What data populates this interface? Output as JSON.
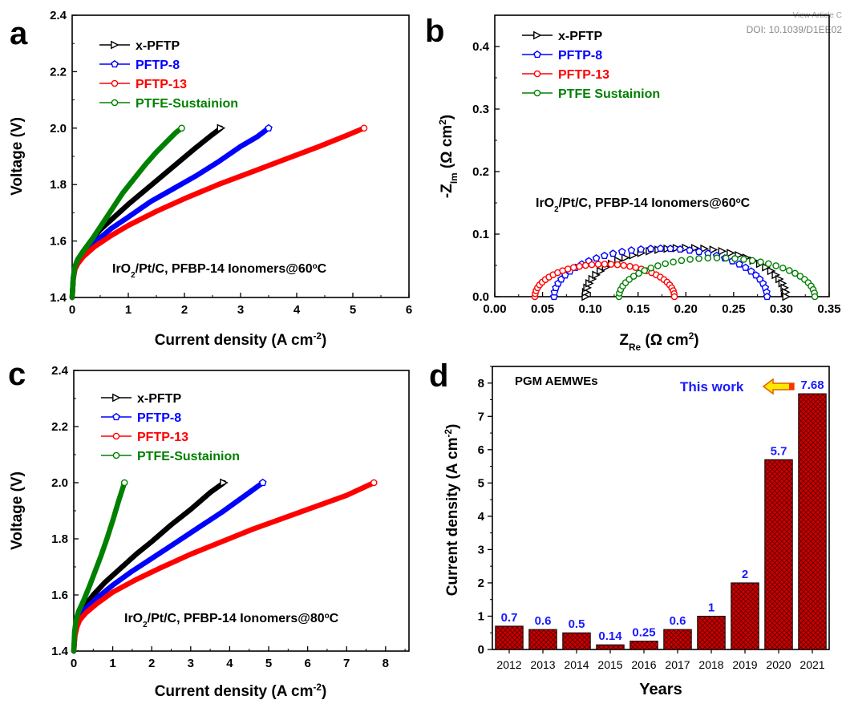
{
  "header": {
    "view_article": "View Article C",
    "doi": "DOI: 10.1039/D1EE02"
  },
  "chart_data": [
    {
      "panel": "a",
      "type": "line",
      "annotation": "IrO2/Pt/C, PFBP-14 Ionomers@60°C",
      "annotation_parts": [
        "IrO",
        "2",
        "/Pt/C, PFBP-14 Ionomers@60",
        "o",
        "C"
      ],
      "xlabel": "Current density (A cm-2)",
      "xlabel_parts": [
        "Current density (A cm",
        "-2",
        ")"
      ],
      "ylabel": "Voltage (V)",
      "xlim": [
        0,
        6
      ],
      "ylim": [
        1.4,
        2.4
      ],
      "xticks": [
        "0",
        "1",
        "2",
        "3",
        "4",
        "5",
        "6"
      ],
      "yticks": [
        "1.4",
        "1.6",
        "1.8",
        "2.0",
        "2.2",
        "2.4"
      ],
      "legend_position": "top-left",
      "series": [
        {
          "name": "x-PFTP",
          "color": "#000000",
          "marker": "triangle",
          "x": [
            0,
            0.02,
            0.05,
            0.1,
            0.2,
            0.35,
            0.5,
            0.75,
            1.0,
            1.3,
            1.6,
            1.9,
            2.2,
            2.45,
            2.65
          ],
          "y": [
            1.4,
            1.47,
            1.51,
            1.535,
            1.565,
            1.605,
            1.64,
            1.685,
            1.73,
            1.78,
            1.83,
            1.88,
            1.93,
            1.97,
            2.0
          ]
        },
        {
          "name": "PFTP-8",
          "color": "#0000ff",
          "marker": "pentagon",
          "x": [
            0,
            0.02,
            0.05,
            0.1,
            0.2,
            0.4,
            0.7,
            1.0,
            1.4,
            1.8,
            2.2,
            2.6,
            3.0,
            3.3,
            3.5
          ],
          "y": [
            1.4,
            1.47,
            1.505,
            1.53,
            1.555,
            1.595,
            1.645,
            1.685,
            1.74,
            1.785,
            1.83,
            1.88,
            1.935,
            1.97,
            2.0
          ]
        },
        {
          "name": "PFTP-13",
          "color": "#ff0000",
          "marker": "circle",
          "x": [
            0,
            0.02,
            0.05,
            0.1,
            0.2,
            0.4,
            0.7,
            1.0,
            1.5,
            2.0,
            2.6,
            3.2,
            3.8,
            4.4,
            4.9,
            5.2
          ],
          "y": [
            1.4,
            1.465,
            1.5,
            1.52,
            1.545,
            1.58,
            1.62,
            1.655,
            1.705,
            1.75,
            1.8,
            1.845,
            1.89,
            1.935,
            1.975,
            2.0
          ]
        },
        {
          "name": "PTFE-Sustainion",
          "color": "#008000",
          "marker": "circle",
          "x": [
            0,
            0.02,
            0.05,
            0.1,
            0.2,
            0.35,
            0.5,
            0.7,
            0.9,
            1.1,
            1.3,
            1.5,
            1.7,
            1.85,
            1.95
          ],
          "y": [
            1.4,
            1.47,
            1.51,
            1.535,
            1.565,
            1.605,
            1.65,
            1.71,
            1.77,
            1.82,
            1.87,
            1.915,
            1.955,
            1.985,
            2.0
          ]
        }
      ]
    },
    {
      "panel": "b",
      "type": "scatter",
      "annotation": "IrO2/Pt/C, PFBP-14 Ionomers@60°C",
      "annotation_parts": [
        "IrO",
        "2",
        "/Pt/C, PFBP-14 Ionomers@60",
        "o",
        "C"
      ],
      "xlabel": "ZRe (Ω cm2)",
      "xlabel_parts": [
        "Z",
        "Re",
        " (Ω cm",
        "2",
        ")"
      ],
      "ylabel": "-ZIm (Ω cm2)",
      "ylabel_parts": [
        "-Z",
        "Im",
        " (Ω cm",
        "2",
        ")"
      ],
      "xlim": [
        0,
        0.35
      ],
      "ylim": [
        0,
        0.45
      ],
      "xticks": [
        "0.00",
        "0.05",
        "0.10",
        "0.15",
        "0.20",
        "0.25",
        "0.30",
        "0.35"
      ],
      "yticks": [
        "0.0",
        "0.1",
        "0.2",
        "0.3",
        "0.4"
      ],
      "legend_position": "top-left",
      "series": [
        {
          "name": "x-PFTP",
          "color": "#000000",
          "marker": "triangle",
          "arc": {
            "r0": 0.095,
            "r1": 0.305,
            "peak": 0.078
          }
        },
        {
          "name": "PFTP-8",
          "color": "#0000ff",
          "marker": "pentagon",
          "arc": {
            "r0": 0.062,
            "r1": 0.285,
            "peak": 0.077
          }
        },
        {
          "name": "PFTP-13",
          "color": "#ff0000",
          "marker": "circle",
          "arc": {
            "r0": 0.042,
            "r1": 0.188,
            "peak": 0.052
          }
        },
        {
          "name": "PTFE Sustainion",
          "color": "#008000",
          "marker": "circle",
          "arc": {
            "r0": 0.13,
            "r1": 0.335,
            "peak": 0.062
          }
        }
      ]
    },
    {
      "panel": "c",
      "type": "line",
      "annotation": "IrO2/Pt/C, PFBP-14 Ionomers@80°C",
      "annotation_parts": [
        "IrO",
        "2",
        "/Pt/C, PFBP-14 Ionomers@80",
        "o",
        "C"
      ],
      "xlabel": "Current density (A cm-2)",
      "xlabel_parts": [
        "Current density (A cm",
        "-2",
        ")"
      ],
      "ylabel": "Voltage (V)",
      "xlim": [
        0,
        8.6
      ],
      "ylim": [
        1.4,
        2.4
      ],
      "xticks": [
        "0",
        "1",
        "2",
        "3",
        "4",
        "5",
        "6",
        "7",
        "8"
      ],
      "yticks": [
        "1.4",
        "1.6",
        "1.8",
        "2.0",
        "2.2",
        "2.4"
      ],
      "legend_position": "top-left",
      "series": [
        {
          "name": "x-PFTP",
          "color": "#000000",
          "marker": "triangle",
          "x": [
            0,
            0.03,
            0.08,
            0.15,
            0.3,
            0.5,
            0.8,
            1.2,
            1.6,
            2.0,
            2.5,
            3.0,
            3.5,
            3.85
          ],
          "y": [
            1.4,
            1.47,
            1.505,
            1.53,
            1.565,
            1.6,
            1.645,
            1.695,
            1.745,
            1.79,
            1.85,
            1.905,
            1.965,
            2.0
          ]
        },
        {
          "name": "PFTP-8",
          "color": "#0000ff",
          "marker": "pentagon",
          "x": [
            0,
            0.03,
            0.08,
            0.15,
            0.3,
            0.6,
            1.0,
            1.5,
            2.0,
            2.6,
            3.2,
            3.8,
            4.4,
            4.85
          ],
          "y": [
            1.4,
            1.465,
            1.5,
            1.52,
            1.55,
            1.59,
            1.635,
            1.685,
            1.73,
            1.785,
            1.84,
            1.895,
            1.955,
            2.0
          ]
        },
        {
          "name": "PFTP-13",
          "color": "#ff0000",
          "marker": "circle",
          "x": [
            0,
            0.03,
            0.08,
            0.15,
            0.3,
            0.6,
            1.0,
            1.6,
            2.2,
            3.0,
            3.8,
            4.6,
            5.4,
            6.2,
            7.0,
            7.7
          ],
          "y": [
            1.4,
            1.455,
            1.485,
            1.51,
            1.535,
            1.57,
            1.61,
            1.655,
            1.695,
            1.745,
            1.79,
            1.835,
            1.875,
            1.915,
            1.955,
            2.0
          ]
        },
        {
          "name": "PTFE-Sustainion",
          "color": "#008000",
          "marker": "circle",
          "x": [
            0,
            0.02,
            0.06,
            0.12,
            0.25,
            0.4,
            0.55,
            0.7,
            0.85,
            1.0,
            1.15,
            1.3
          ],
          "y": [
            1.4,
            1.47,
            1.51,
            1.54,
            1.58,
            1.63,
            1.685,
            1.74,
            1.8,
            1.865,
            1.935,
            2.0
          ]
        }
      ]
    },
    {
      "panel": "d",
      "type": "bar",
      "title": "PGM AEMWEs",
      "categories": [
        "2012",
        "2013",
        "2014",
        "2015",
        "2016",
        "2017",
        "2018",
        "2019",
        "2020",
        "2021"
      ],
      "values": [
        0.7,
        0.6,
        0.5,
        0.14,
        0.25,
        0.6,
        1,
        2,
        5.7,
        7.68
      ],
      "value_labels": [
        "0.7",
        "0.6",
        "0.5",
        "0.14",
        "0.25",
        "0.6",
        "1",
        "2",
        "5.7",
        "7.68"
      ],
      "xlabel": "Years",
      "ylabel": "Current density (A cm-2)",
      "ylabel_parts": [
        "Current density (A cm",
        "-2",
        ")"
      ],
      "ylim": [
        0,
        8.5
      ],
      "yticks": [
        "0",
        "1",
        "2",
        "3",
        "4",
        "5",
        "6",
        "7",
        "8"
      ],
      "bar_color": "#cc0000",
      "label_color": "#1a1aff",
      "callout": "This work"
    }
  ],
  "panel_letters": [
    "a",
    "b",
    "c",
    "d"
  ]
}
